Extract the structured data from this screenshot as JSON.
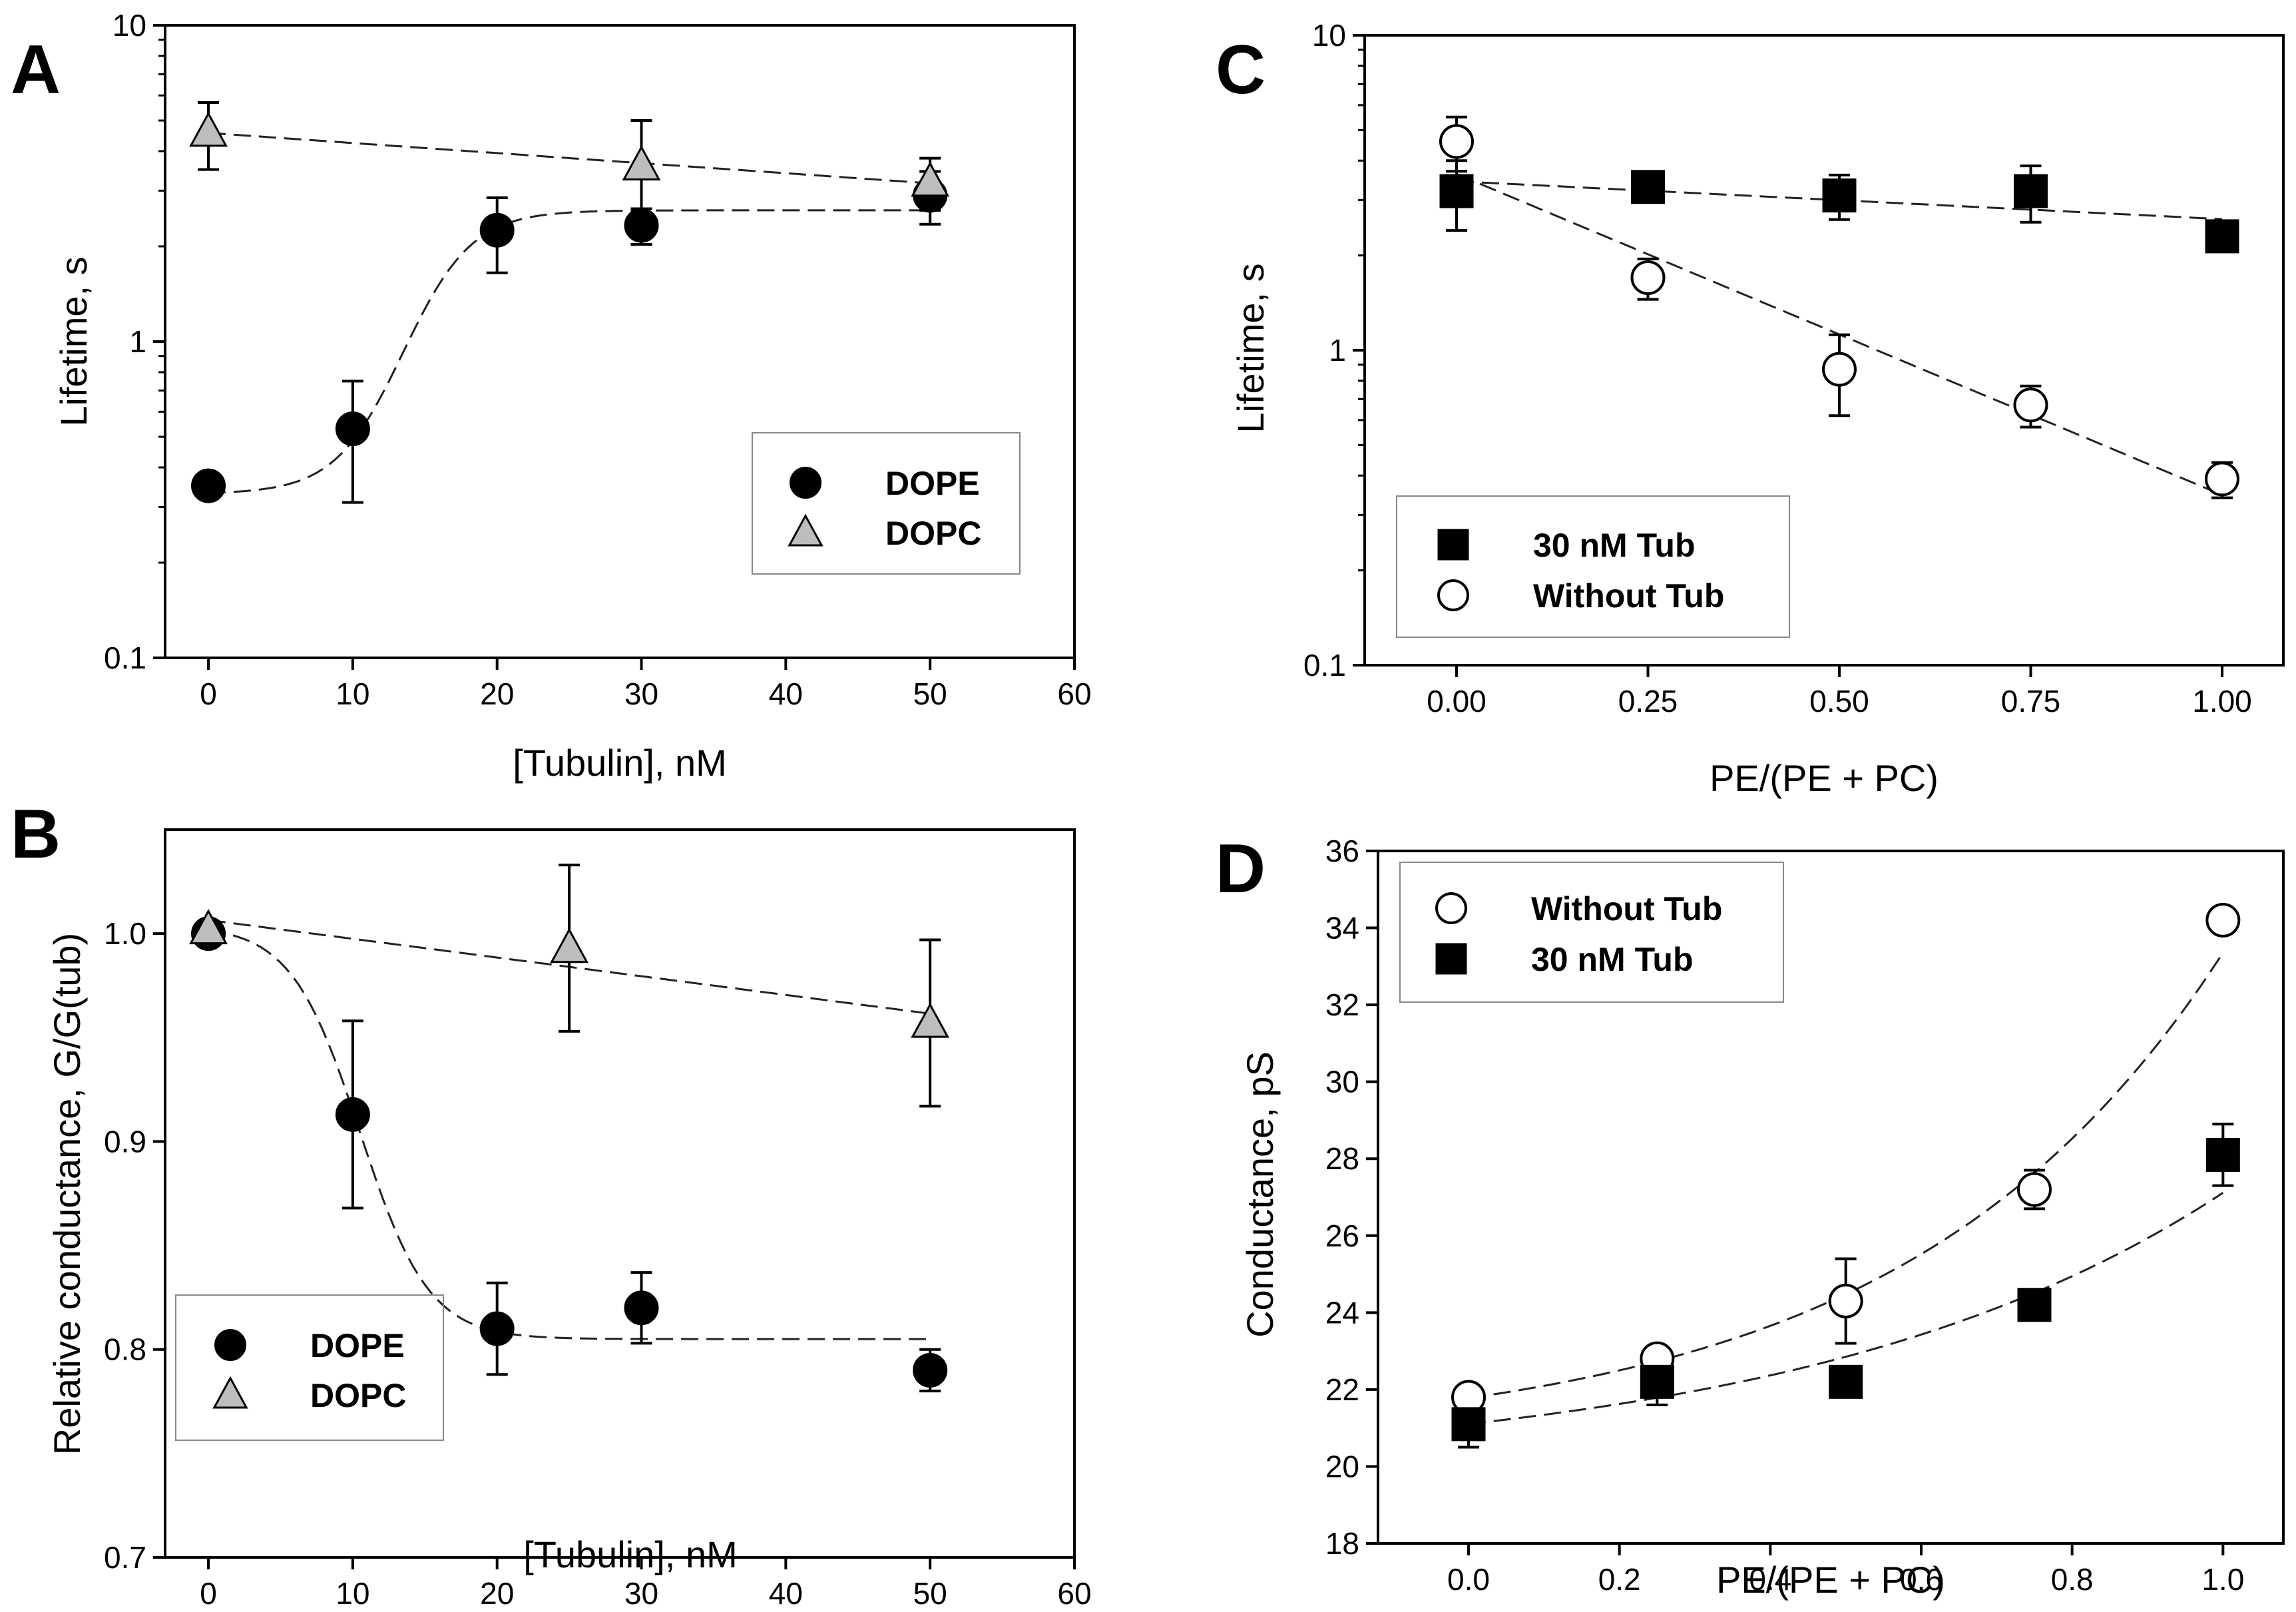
{
  "chart_data": [
    {
      "panel": "A",
      "type": "scatter",
      "xlabel": "[Tubulin], nM",
      "ylabel": "Lifetime, s",
      "yscale": "log",
      "xlim": [
        -3,
        60
      ],
      "ylim": [
        0.1,
        10
      ],
      "xticks": [
        0,
        10,
        20,
        30,
        40,
        50,
        60
      ],
      "yticks": [
        0.1,
        1,
        10
      ],
      "legend": "bottom-right",
      "series": [
        {
          "name": "DOPE",
          "marker": "circle",
          "fill": "#000000",
          "x": [
            0,
            10,
            20,
            30,
            50
          ],
          "y": [
            0.35,
            0.53,
            2.25,
            2.33,
            2.9
          ],
          "err_lo": [
            0,
            0.22,
            0.6,
            0.3,
            0.55
          ],
          "err_hi": [
            0,
            0.22,
            0.6,
            0.3,
            0.55
          ],
          "fit": "sigmoid"
        },
        {
          "name": "DOPC",
          "marker": "triangle",
          "fill": "#bebebe",
          "x": [
            0,
            30,
            50
          ],
          "y": [
            4.6,
            3.6,
            3.2
          ],
          "err_lo": [
            1.1,
            1.4,
            0.6
          ],
          "err_hi": [
            1.1,
            1.4,
            0.6
          ],
          "fit": "line"
        }
      ]
    },
    {
      "panel": "B",
      "type": "scatter",
      "xlabel": "[Tubulin], nM",
      "ylabel": "Relative conductance, G/G(tub)",
      "yscale": "linear",
      "xlim": [
        -3,
        60
      ],
      "ylim": [
        0.7,
        1.05
      ],
      "xticks": [
        0,
        10,
        20,
        30,
        40,
        50,
        60
      ],
      "yticks": [
        0.7,
        0.8,
        0.9,
        1.0
      ],
      "legend": "bottom-left",
      "series": [
        {
          "name": "DOPE",
          "marker": "circle",
          "fill": "#000000",
          "x": [
            0,
            10,
            20,
            30,
            50
          ],
          "y": [
            1.0,
            0.913,
            0.81,
            0.82,
            0.79
          ],
          "err_lo": [
            0,
            0.045,
            0.022,
            0.017,
            0.01
          ],
          "err_hi": [
            0,
            0.045,
            0.022,
            0.017,
            0.01
          ],
          "fit": "sigmoid"
        },
        {
          "name": "DOPC",
          "marker": "triangle",
          "fill": "#bebebe",
          "x": [
            0,
            25,
            50
          ],
          "y": [
            1.002,
            0.993,
            0.957
          ],
          "err_lo": [
            0,
            0.04,
            0.04
          ],
          "err_hi": [
            0,
            0.04,
            0.04
          ],
          "fit": "line"
        }
      ]
    },
    {
      "panel": "C",
      "type": "scatter",
      "xlabel": "PE/(PE + PC)",
      "ylabel": "Lifetime, s",
      "yscale": "log",
      "xlim": [
        -0.12,
        1.08
      ],
      "ylim": [
        0.1,
        10
      ],
      "xticks": [
        "0.00",
        "0.25",
        "0.50",
        "0.75",
        "1.00"
      ],
      "yticks": [
        0.1,
        1,
        10
      ],
      "legend": "bottom-left",
      "series": [
        {
          "name": "30 nM Tub",
          "marker": "square",
          "fill": "#000000",
          "x": [
            0,
            0.25,
            0.5,
            0.75,
            1.0
          ],
          "y": [
            3.2,
            3.3,
            3.1,
            3.2,
            2.3
          ],
          "err_lo": [
            0.8,
            0,
            0.5,
            0.65,
            0
          ],
          "err_hi": [
            0.8,
            0,
            0.5,
            0.65,
            0
          ],
          "fit": "line"
        },
        {
          "name": "Without Tub",
          "marker": "open-circle",
          "fill": "#ffffff",
          "x": [
            0,
            0.25,
            0.5,
            0.75,
            1.0
          ],
          "y": [
            4.6,
            1.7,
            0.87,
            0.67,
            0.39
          ],
          "err_lo": [
            0.9,
            0.25,
            0.25,
            0.1,
            0.05
          ],
          "err_hi": [
            0.9,
            0.25,
            0.25,
            0.1,
            0.05
          ],
          "fit": "exponential"
        }
      ]
    },
    {
      "panel": "D",
      "type": "scatter",
      "xlabel": "PE/(PE + PC)",
      "ylabel": "Conductance, pS",
      "yscale": "linear",
      "xlim": [
        -0.12,
        1.08
      ],
      "ylim": [
        18,
        36
      ],
      "xticks": [
        "0.0",
        "0.2",
        "0.4",
        "0.6",
        "0.8",
        "1.0"
      ],
      "yticks": [
        18,
        20,
        22,
        24,
        26,
        28,
        30,
        32,
        34,
        36
      ],
      "legend": "top-left",
      "series": [
        {
          "name": "Without Tub",
          "marker": "open-circle",
          "fill": "#ffffff",
          "x": [
            0,
            0.25,
            0.5,
            0.75,
            1.0
          ],
          "y": [
            21.8,
            22.8,
            24.3,
            27.2,
            34.2
          ],
          "err_lo": [
            0,
            0.3,
            1.1,
            0.5,
            0
          ],
          "err_hi": [
            0,
            0.3,
            1.1,
            0.5,
            0
          ],
          "fit": "exponential"
        },
        {
          "name": "30 nM Tub",
          "marker": "square",
          "fill": "#000000",
          "x": [
            0,
            0.25,
            0.5,
            0.75,
            1.0
          ],
          "y": [
            21.1,
            22.2,
            22.2,
            24.2,
            28.1
          ],
          "err_lo": [
            0.6,
            0.6,
            0,
            0,
            0.8
          ],
          "err_hi": [
            0.6,
            0.6,
            0,
            0,
            0.8
          ],
          "fit": "exponential"
        }
      ]
    }
  ]
}
